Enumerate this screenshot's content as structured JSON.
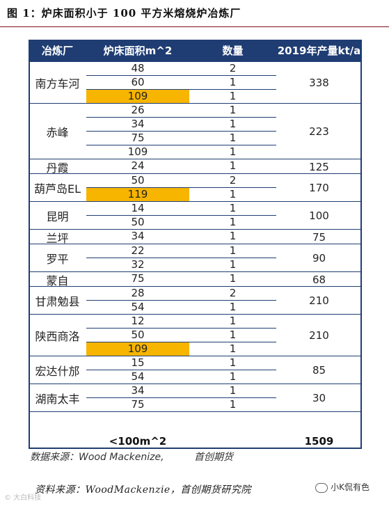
{
  "figure_title": "图 1：炉床面积小于 100 平方米熔烧炉冶炼厂",
  "table": {
    "headers": [
      "冶炼厂",
      "炉床面积m^2",
      "数量",
      "2019年产量kt/a"
    ],
    "groups": [
      {
        "plant": "南方车河",
        "production": "338",
        "rows": [
          {
            "area": "48",
            "count": "2",
            "highlight": false
          },
          {
            "area": "60",
            "count": "1",
            "highlight": false
          },
          {
            "area": "109",
            "count": "1",
            "highlight": true
          }
        ]
      },
      {
        "plant": "赤峰",
        "production": "223",
        "rows": [
          {
            "area": "26",
            "count": "1",
            "highlight": false
          },
          {
            "area": "34",
            "count": "1",
            "highlight": false
          },
          {
            "area": "75",
            "count": "1",
            "highlight": false
          },
          {
            "area": "109",
            "count": "1",
            "highlight": false
          }
        ]
      },
      {
        "plant": "丹霞",
        "production": "125",
        "rows": [
          {
            "area": "24",
            "count": "1",
            "highlight": false
          }
        ]
      },
      {
        "plant": "葫芦岛EL",
        "production": "170",
        "rows": [
          {
            "area": "50",
            "count": "2",
            "highlight": false
          },
          {
            "area": "119",
            "count": "1",
            "highlight": true
          }
        ]
      },
      {
        "plant": "昆明",
        "production": "100",
        "rows": [
          {
            "area": "14",
            "count": "1",
            "highlight": false
          },
          {
            "area": "50",
            "count": "1",
            "highlight": false
          }
        ]
      },
      {
        "plant": "兰坪",
        "production": "75",
        "rows": [
          {
            "area": "34",
            "count": "1",
            "highlight": false
          }
        ]
      },
      {
        "plant": "罗平",
        "production": "90",
        "rows": [
          {
            "area": "22",
            "count": "1",
            "highlight": false
          },
          {
            "area": "32",
            "count": "1",
            "highlight": false
          }
        ]
      },
      {
        "plant": "蒙自",
        "production": "68",
        "rows": [
          {
            "area": "75",
            "count": "1",
            "highlight": false
          }
        ]
      },
      {
        "plant": "甘肃勉县",
        "production": "210",
        "rows": [
          {
            "area": "28",
            "count": "2",
            "highlight": false
          },
          {
            "area": "54",
            "count": "1",
            "highlight": false
          }
        ]
      },
      {
        "plant": "陕西商洛",
        "production": "210",
        "rows": [
          {
            "area": "12",
            "count": "1",
            "highlight": false
          },
          {
            "area": "50",
            "count": "1",
            "highlight": false
          },
          {
            "area": "109",
            "count": "1",
            "highlight": true
          }
        ]
      },
      {
        "plant": "宏达什邡",
        "production": "85",
        "rows": [
          {
            "area": "15",
            "count": "1",
            "highlight": false
          },
          {
            "area": "54",
            "count": "1",
            "highlight": false
          }
        ]
      },
      {
        "plant": "湖南太丰",
        "production": "30",
        "rows": [
          {
            "area": "34",
            "count": "1",
            "highlight": false
          },
          {
            "area": "75",
            "count": "1",
            "highlight": false
          }
        ]
      }
    ],
    "total": {
      "label": "<100m^2",
      "value": "1509"
    },
    "source": {
      "label": "数据来源：Wood Mackenize,",
      "org": "首创期货"
    }
  },
  "footer_source": "资料来源：WoodMackenzie，首创期货研究院",
  "watermark": "© 大白科技",
  "brand": "小K侃有色",
  "colors": {
    "header_bg": "#1f3d73",
    "highlight": "#f7b500",
    "title_rule": "#7a1020"
  }
}
